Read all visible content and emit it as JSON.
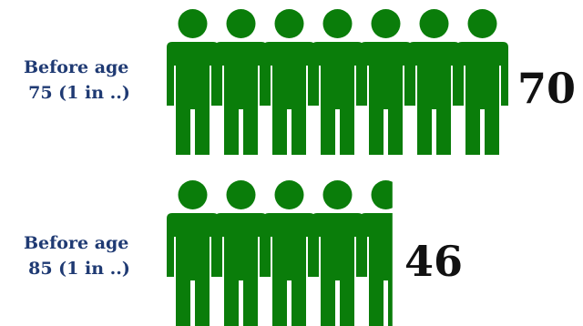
{
  "chart_data": {
    "type": "bar",
    "title": "",
    "xlabel": "",
    "ylabel": "",
    "categories": [
      "Before age 75 (1 in ..)",
      "Before age 85 (1 in ..)"
    ],
    "values": [
      70,
      46
    ],
    "rows": [
      {
        "label_lines": [
          "Before age",
          "75 (1 in ..)"
        ],
        "value": 70,
        "value_label": "70"
      },
      {
        "label_lines": [
          "Before age",
          "85 (1 in ..)"
        ],
        "value": 46,
        "value_label": "46"
      }
    ],
    "icon": "person-icon",
    "icon_color": "#0a7d0a",
    "label_color": "#1f3a73",
    "value_color": "#111111"
  }
}
